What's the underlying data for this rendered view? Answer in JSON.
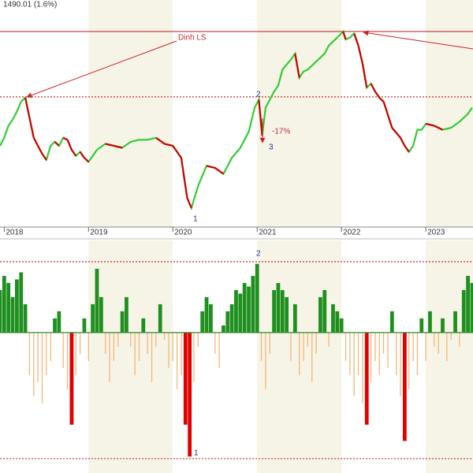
{
  "chart_data": [
    {
      "type": "line",
      "header": "1490.01 (1.6%)",
      "x": [
        2017.95,
        2018,
        2018.05,
        2018.1,
        2018.15,
        2018.2,
        2018.25,
        2018.3,
        2018.35,
        2018.4,
        2018.45,
        2018.5,
        2018.55,
        2018.6,
        2018.65,
        2018.7,
        2018.75,
        2018.8,
        2018.85,
        2018.9,
        2018.95,
        2019,
        2019.1,
        2019.2,
        2019.3,
        2019.4,
        2019.5,
        2019.6,
        2019.7,
        2019.8,
        2019.9,
        2020,
        2020.05,
        2020.1,
        2020.17,
        2020.22,
        2020.3,
        2020.4,
        2020.5,
        2020.6,
        2020.7,
        2020.8,
        2020.9,
        2020.97,
        2021.02,
        2021.06,
        2021.1,
        2021.2,
        2021.25,
        2021.3,
        2021.4,
        2021.45,
        2021.5,
        2021.55,
        2021.6,
        2021.7,
        2021.8,
        2021.85,
        2021.9,
        2021.95,
        2022.02,
        2022.05,
        2022.1,
        2022.15,
        2022.2,
        2022.25,
        2022.3,
        2022.35,
        2022.4,
        2022.45,
        2022.5,
        2022.6,
        2022.7,
        2022.75,
        2022.8,
        2022.85,
        2022.9,
        2022.95,
        2023,
        2023.1,
        2023.2,
        2023.3,
        2023.4,
        2023.5,
        2023.55
      ],
      "values": [
        960,
        1000,
        1060,
        1090,
        1130,
        1180,
        1200,
        1100,
        1000,
        960,
        920,
        890,
        960,
        980,
        960,
        1000,
        990,
        940,
        910,
        930,
        900,
        880,
        940,
        970,
        960,
        950,
        980,
        990,
        990,
        1000,
        970,
        960,
        930,
        900,
        700,
        650,
        760,
        860,
        850,
        820,
        900,
        950,
        1030,
        1150,
        1190,
        1010,
        1150,
        1230,
        1260,
        1340,
        1390,
        1420,
        1300,
        1330,
        1340,
        1380,
        1420,
        1460,
        1480,
        1500,
        1530,
        1490,
        1500,
        1520,
        1460,
        1370,
        1250,
        1270,
        1230,
        1200,
        1180,
        1050,
        1000,
        960,
        930,
        960,
        1040,
        1040,
        1070,
        1060,
        1040,
        1050,
        1080,
        1120,
        1150
      ],
      "colors": {
        "up": "#33cc33",
        "down": "#cc0000"
      },
      "xlim": [
        2017.95,
        2023.56
      ],
      "ylim": [
        555,
        1687
      ],
      "xticks": [
        2018,
        2019,
        2020,
        2021,
        2022,
        2023
      ],
      "reference_lines": [
        {
          "value": 1530,
          "style": "solid"
        },
        {
          "value": 1204,
          "style": "dotted"
        }
      ],
      "annotations": [
        "Dinh LS",
        "1",
        "2",
        "3",
        "-17%"
      ]
    },
    {
      "type": "histogram_oscillator",
      "x": [
        2017.95,
        2018,
        2018.05,
        2018.1,
        2018.15,
        2018.2,
        2018.25,
        2018.3,
        2018.35,
        2018.4,
        2018.45,
        2018.5,
        2018.55,
        2018.6,
        2018.65,
        2018.7,
        2018.75,
        2018.8,
        2018.85,
        2018.9,
        2018.95,
        2019,
        2019.05,
        2019.1,
        2019.15,
        2019.2,
        2019.25,
        2019.3,
        2019.35,
        2019.4,
        2019.45,
        2019.5,
        2019.55,
        2019.6,
        2019.65,
        2019.7,
        2019.75,
        2019.8,
        2019.85,
        2019.9,
        2019.95,
        2020,
        2020.05,
        2020.1,
        2020.15,
        2020.2,
        2020.25,
        2020.3,
        2020.35,
        2020.4,
        2020.45,
        2020.5,
        2020.55,
        2020.6,
        2020.65,
        2020.7,
        2020.75,
        2020.8,
        2020.85,
        2020.9,
        2020.95,
        2021,
        2021.05,
        2021.1,
        2021.15,
        2021.2,
        2021.25,
        2021.3,
        2021.35,
        2021.4,
        2021.45,
        2021.5,
        2021.55,
        2021.6,
        2021.65,
        2021.7,
        2021.75,
        2021.8,
        2021.85,
        2021.9,
        2021.95,
        2022,
        2022.05,
        2022.1,
        2022.15,
        2022.2,
        2022.25,
        2022.3,
        2022.35,
        2022.4,
        2022.45,
        2022.5,
        2022.55,
        2022.6,
        2022.65,
        2022.7,
        2022.75,
        2022.8,
        2022.85,
        2022.9,
        2022.95,
        2023,
        2023.05,
        2023.1,
        2023.15,
        2023.2,
        2023.25,
        2023.3,
        2023.35,
        2023.4,
        2023.45,
        2023.5,
        2023.55
      ],
      "values": [
        60,
        80,
        70,
        50,
        75,
        85,
        40,
        -60,
        -90,
        -70,
        -100,
        -60,
        -40,
        20,
        30,
        -50,
        -80,
        -130,
        -60,
        -30,
        20,
        -40,
        40,
        90,
        50,
        -30,
        -70,
        -40,
        -20,
        30,
        50,
        -20,
        -60,
        -40,
        20,
        -30,
        -70,
        -20,
        40,
        -10,
        -50,
        -40,
        -80,
        -60,
        -130,
        -175,
        -70,
        -20,
        30,
        50,
        40,
        -30,
        -50,
        10,
        30,
        40,
        60,
        55,
        70,
        65,
        80,
        97,
        -40,
        -80,
        -30,
        60,
        70,
        60,
        50,
        -40,
        40,
        -60,
        -40,
        -20,
        -70,
        -30,
        50,
        60,
        -20,
        40,
        30,
        20,
        -40,
        -60,
        -90,
        -60,
        -100,
        -130,
        -70,
        -40,
        -60,
        -30,
        -50,
        30,
        -60,
        -90,
        -153,
        -80,
        -40,
        -60,
        20,
        -40,
        30,
        -20,
        -30,
        20,
        -40,
        -10,
        30,
        -20,
        60,
        80,
        70
      ],
      "colors": {
        "positive": "#1f8f1f",
        "negative": "#f2b77a",
        "extreme": "#e00000",
        "zero": "#2e8b2e"
      },
      "extreme_below": -100,
      "xlim": [
        2017.95,
        2023.56
      ],
      "ylim": [
        -196,
        130
      ],
      "reference_lines": [
        {
          "value": 100,
          "style": "dotted"
        },
        {
          "value": -178,
          "style": "dotted"
        }
      ],
      "annotations": [
        "2",
        "1"
      ]
    }
  ]
}
